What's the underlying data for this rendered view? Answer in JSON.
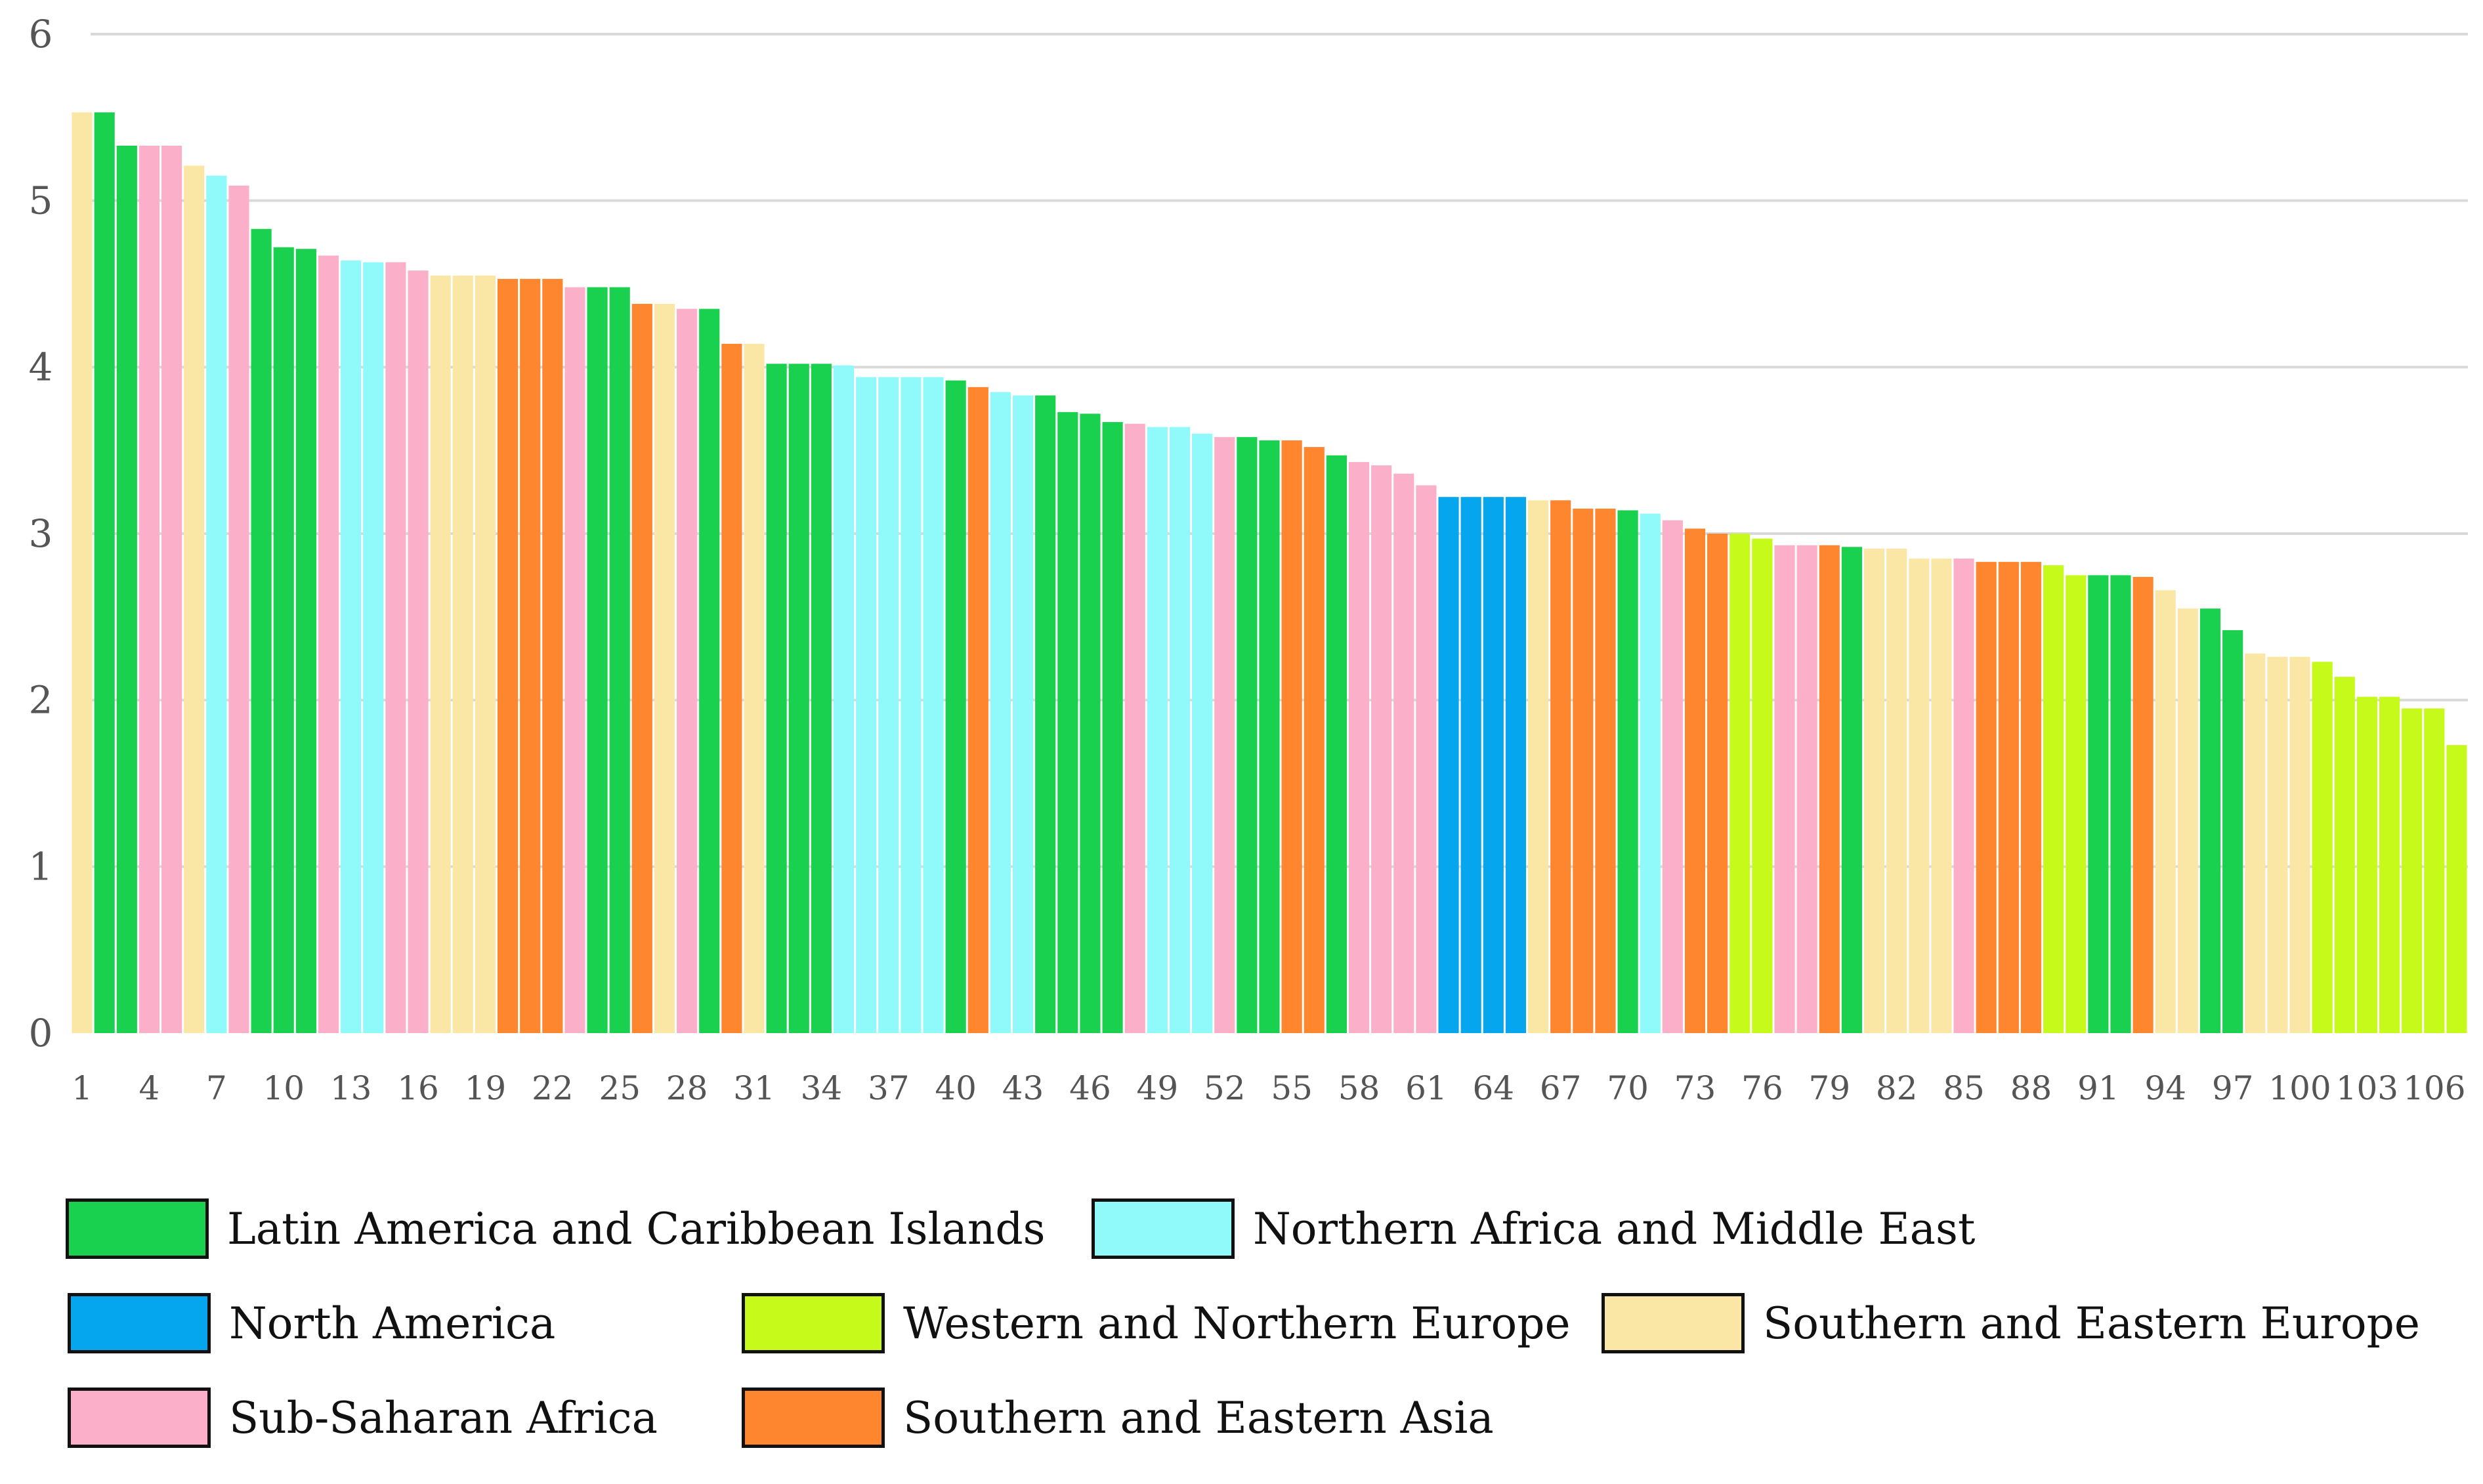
{
  "chart_data": {
    "type": "bar",
    "title": "",
    "xlabel": "",
    "ylabel": "",
    "ylim": [
      0,
      6
    ],
    "yticks": [
      "0",
      "1",
      "2",
      "3",
      "4",
      "5",
      "6"
    ],
    "grid": true,
    "x_tick_every": 3,
    "categories": [
      1,
      2,
      3,
      4,
      5,
      6,
      7,
      8,
      9,
      10,
      11,
      12,
      13,
      14,
      15,
      16,
      17,
      18,
      19,
      20,
      21,
      22,
      23,
      24,
      25,
      26,
      27,
      28,
      29,
      30,
      31,
      32,
      33,
      34,
      35,
      36,
      37,
      38,
      39,
      40,
      41,
      42,
      43,
      44,
      45,
      46,
      47,
      48,
      49,
      50,
      51,
      52,
      53,
      54,
      55,
      56,
      57,
      58,
      59,
      60,
      61,
      62,
      63,
      64,
      65,
      66,
      67,
      68,
      69,
      70,
      71,
      72,
      73,
      74,
      75,
      76,
      77,
      78,
      79,
      80,
      81,
      82,
      83,
      84,
      85,
      86,
      87,
      88,
      89,
      90,
      91,
      92,
      93,
      94,
      95,
      96,
      97,
      98,
      99,
      100,
      101,
      102,
      103,
      104,
      105,
      106,
      107
    ],
    "x_tick_labels": [
      "1",
      "4",
      "7",
      "10",
      "13",
      "16",
      "19",
      "22",
      "25",
      "28",
      "31",
      "34",
      "37",
      "40",
      "43",
      "46",
      "49",
      "52",
      "55",
      "58",
      "61",
      "64",
      "67",
      "70",
      "73",
      "76",
      "79",
      "82",
      "85",
      "88",
      "91",
      "94",
      "97",
      "100",
      "103",
      "106"
    ],
    "values": [
      5.53,
      5.53,
      5.33,
      5.33,
      5.33,
      5.21,
      5.15,
      5.09,
      4.83,
      4.72,
      4.71,
      4.67,
      4.64,
      4.63,
      4.63,
      4.58,
      4.55,
      4.55,
      4.55,
      4.53,
      4.53,
      4.53,
      4.48,
      4.48,
      4.48,
      4.38,
      4.38,
      4.35,
      4.35,
      4.14,
      4.14,
      4.02,
      4.02,
      4.02,
      4.01,
      3.94,
      3.94,
      3.94,
      3.94,
      3.92,
      3.88,
      3.85,
      3.83,
      3.83,
      3.73,
      3.72,
      3.67,
      3.66,
      3.64,
      3.64,
      3.6,
      3.58,
      3.58,
      3.56,
      3.56,
      3.52,
      3.47,
      3.43,
      3.41,
      3.36,
      3.29,
      3.22,
      3.22,
      3.22,
      3.22,
      3.2,
      3.2,
      3.15,
      3.15,
      3.14,
      3.12,
      3.08,
      3.03,
      3.0,
      3.0,
      2.97,
      2.93,
      2.93,
      2.93,
      2.92,
      2.91,
      2.91,
      2.85,
      2.85,
      2.85,
      2.83,
      2.83,
      2.83,
      2.81,
      2.75,
      2.75,
      2.75,
      2.74,
      2.66,
      2.55,
      2.55,
      2.42,
      2.28,
      2.26,
      2.26,
      2.23,
      2.14,
      2.02,
      2.02,
      1.95,
      1.95,
      1.73
    ],
    "region_of_bar": [
      "SE",
      "LA",
      "LA",
      "SS",
      "SS",
      "SE",
      "NA",
      "SS",
      "LA",
      "LA",
      "LA",
      "SS",
      "NA",
      "NA",
      "SS",
      "SS",
      "SE",
      "SE",
      "SE",
      "AS",
      "AS",
      "AS",
      "SS",
      "LA",
      "LA",
      "AS",
      "SE",
      "SS",
      "LA",
      "AS",
      "SE",
      "LA",
      "LA",
      "LA",
      "NA",
      "NA",
      "NA",
      "NA",
      "NA",
      "LA",
      "AS",
      "NA",
      "NA",
      "LA",
      "LA",
      "LA",
      "LA",
      "SS",
      "NA",
      "NA",
      "NA",
      "SS",
      "LA",
      "LA",
      "AS",
      "AS",
      "LA",
      "SS",
      "SS",
      "SS",
      "SS",
      "NAM",
      "NAM",
      "NAM",
      "NAM",
      "SE",
      "AS",
      "AS",
      "AS",
      "LA",
      "NA",
      "SS",
      "AS",
      "AS",
      "WE",
      "WE",
      "SS",
      "SS",
      "AS",
      "LA",
      "SE",
      "SE",
      "SE",
      "SE",
      "SS",
      "AS",
      "AS",
      "AS",
      "WE",
      "WE",
      "LA",
      "LA",
      "AS",
      "SE",
      "SE",
      "LA",
      "LA",
      "SE",
      "SE",
      "SE",
      "WE",
      "WE",
      "WE",
      "WE",
      "WE",
      "WE",
      "WE"
    ],
    "legend": [
      {
        "key": "LA",
        "label": "Latin America and Caribbean Islands",
        "color": "#1ad14f"
      },
      {
        "key": "NA",
        "label": "Northern Africa and Middle East",
        "color": "#8ffaf9"
      },
      {
        "key": "NAM",
        "label": "North America",
        "color": "#05a6ed"
      },
      {
        "key": "WE",
        "label": "Western and Northern Europe",
        "color": "#c5fa1b"
      },
      {
        "key": "SE",
        "label": "Southern and Eastern Europe",
        "color": "#fbe7a5"
      },
      {
        "key": "SS",
        "label": "Sub-Saharan Africa",
        "color": "#fbafc8"
      },
      {
        "key": "AS",
        "label": "Southern and Eastern Asia",
        "color": "#fd862e"
      }
    ]
  }
}
